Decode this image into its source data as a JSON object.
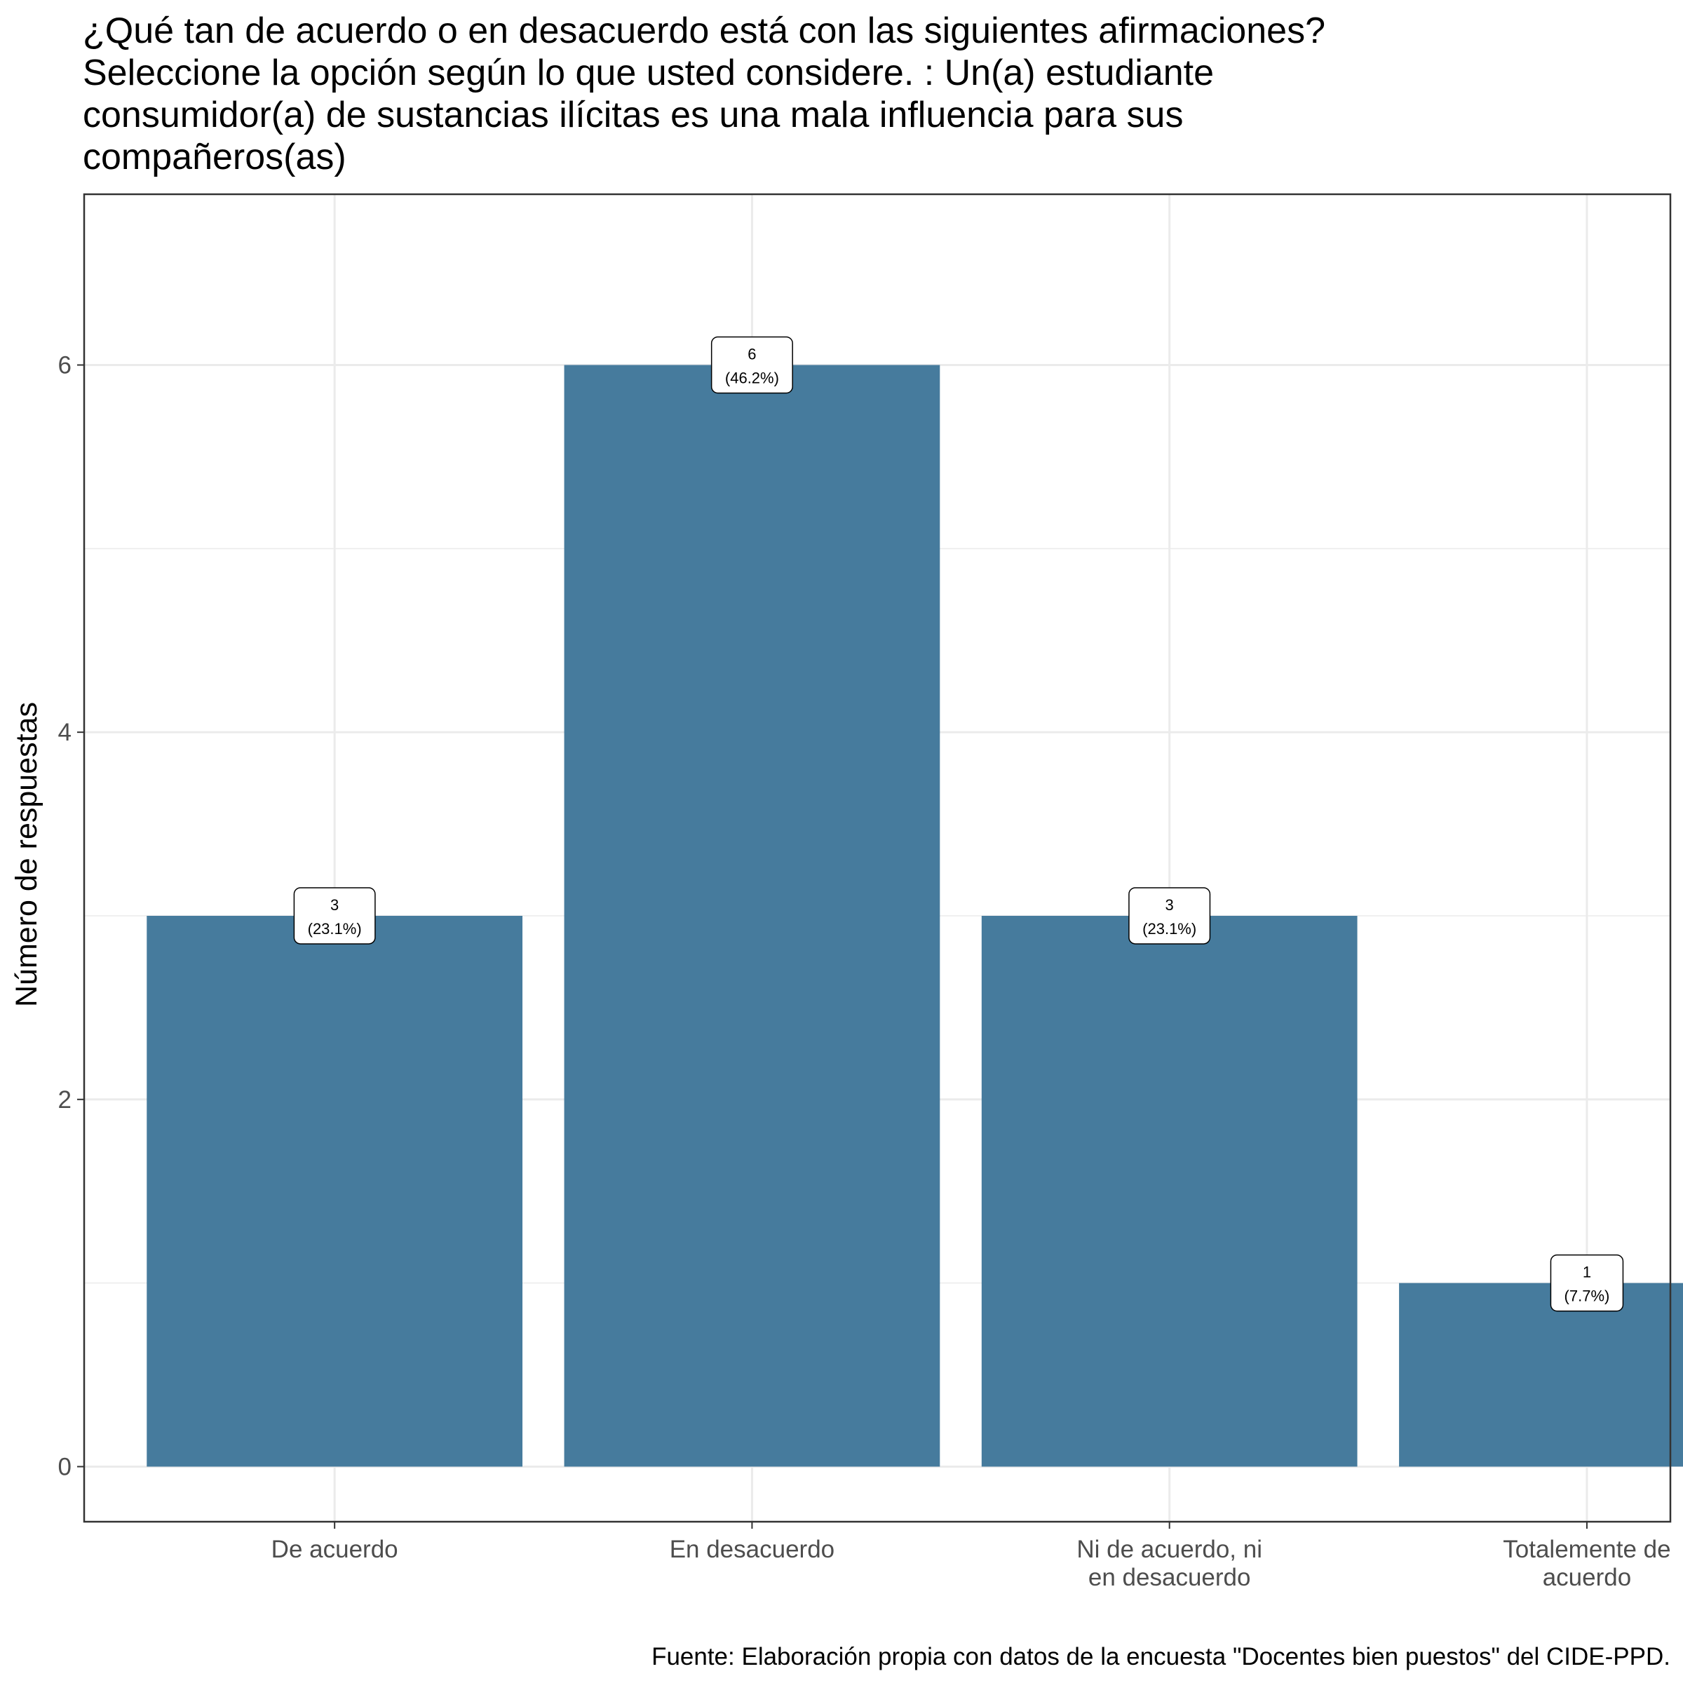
{
  "chart_data": {
    "type": "bar",
    "title_lines": [
      "¿Qué tan de acuerdo o en desacuerdo está con las siguientes afirmaciones?",
      "Seleccione la opción según lo que usted considere. : Un(a) estudiante",
      "consumidor(a) de sustancias ilícitas es una mala influencia para sus",
      "compañeros(as)"
    ],
    "xlabel": "",
    "ylabel": "Número de respuestas",
    "caption": "Fuente: Elaboración propia con datos de la encuesta \"Docentes bien puestos\" del CIDE-PPD.",
    "categories": [
      [
        "De acuerdo"
      ],
      [
        "En desacuerdo"
      ],
      [
        "Ni de acuerdo, ni",
        "en desacuerdo"
      ],
      [
        "Totalemente de",
        "acuerdo"
      ]
    ],
    "values": [
      3,
      6,
      3,
      1
    ],
    "labels": [
      {
        "count": "3",
        "pct": "(23.1%)"
      },
      {
        "count": "6",
        "pct": "(46.2%)"
      },
      {
        "count": "3",
        "pct": "(23.1%)"
      },
      {
        "count": "1",
        "pct": "(7.7%)"
      }
    ],
    "yticks": [
      0,
      2,
      4,
      6
    ],
    "ylim": [
      -0.3,
      6.93
    ],
    "grid": true,
    "bar_color": "#467b9d",
    "legend": "none"
  }
}
